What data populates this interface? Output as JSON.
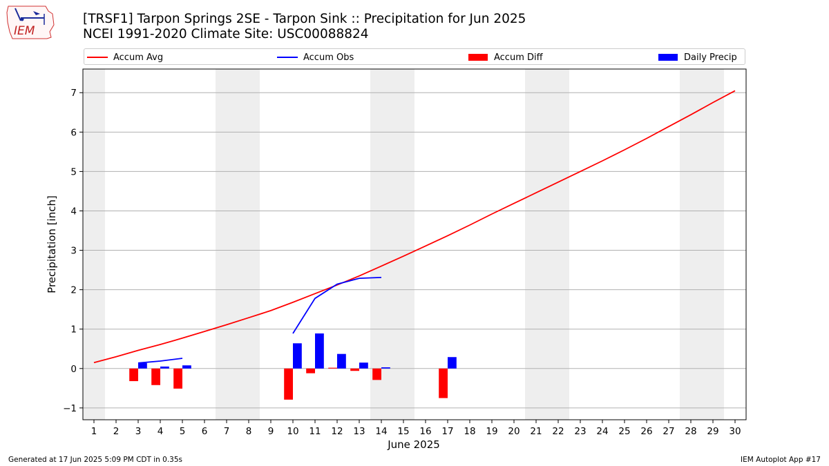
{
  "header": {
    "title_line1": "[TRSF1] Tarpon Springs 2SE - Tarpon Sink :: Precipitation for Jun 2025",
    "title_line2": "NCEI 1991-2020 Climate Site: USC00088824",
    "logo_text": "IEM"
  },
  "footer": {
    "generated": "Generated at 17 Jun 2025 5:09 PM CDT in 0.35s",
    "app": "IEM Autoplot App #17"
  },
  "chart_data": {
    "type": "bar",
    "xlabel": "June 2025",
    "ylabel": "Precipitation [inch]",
    "xlim": [
      0.5,
      30.5
    ],
    "ylim": [
      -1.3,
      7.6
    ],
    "yticks": [
      -1,
      0,
      1,
      2,
      3,
      4,
      5,
      6,
      7
    ],
    "xticks": [
      1,
      2,
      3,
      4,
      5,
      6,
      7,
      8,
      9,
      10,
      11,
      12,
      13,
      14,
      15,
      16,
      17,
      18,
      19,
      20,
      21,
      22,
      23,
      24,
      25,
      26,
      27,
      28,
      29,
      30
    ],
    "grid": "horizontal",
    "legend_placement": "top",
    "weekend_shading": [
      [
        0.5,
        1.5
      ],
      [
        6.5,
        8.5
      ],
      [
        13.5,
        15.5
      ],
      [
        20.5,
        22.5
      ],
      [
        27.5,
        29.5
      ]
    ],
    "colors": {
      "avg": "#ff0000",
      "obs": "#0000ff",
      "diff": "#ff0000",
      "daily": "#0000ff",
      "shade": "#eeeeee",
      "grid": "#b0b0b0"
    },
    "series": [
      {
        "name": "Accum Avg",
        "kind": "line",
        "x": [
          1,
          2,
          3,
          4,
          5,
          6,
          7,
          8,
          9,
          10,
          11,
          12,
          13,
          14,
          15,
          16,
          17,
          18,
          19,
          20,
          21,
          22,
          23,
          24,
          25,
          26,
          27,
          28,
          29,
          30
        ],
        "values": [
          0.15,
          0.3,
          0.46,
          0.61,
          0.77,
          0.94,
          1.11,
          1.29,
          1.47,
          1.68,
          1.9,
          2.12,
          2.35,
          2.6,
          2.85,
          3.11,
          3.37,
          3.64,
          3.92,
          4.19,
          4.46,
          4.73,
          5.0,
          5.27,
          5.55,
          5.84,
          6.14,
          6.44,
          6.75,
          7.05
        ]
      },
      {
        "name": "Accum Obs",
        "kind": "line",
        "x": [
          3,
          4,
          5
        ],
        "values": [
          0.14,
          0.19,
          0.26
        ]
      },
      {
        "name": "Accum Obs",
        "kind": "line",
        "x": [
          10,
          11,
          12,
          13,
          14
        ],
        "values": [
          0.89,
          1.78,
          2.14,
          2.29,
          2.31
        ]
      },
      {
        "name": "Accum Diff",
        "kind": "bar",
        "x": [
          3,
          4,
          5,
          10,
          11,
          12,
          13,
          14,
          17
        ],
        "values": [
          -0.32,
          -0.42,
          -0.51,
          -0.79,
          -0.12,
          0.02,
          -0.06,
          -0.29,
          -0.75
        ]
      },
      {
        "name": "Daily Precip",
        "kind": "bar",
        "x": [
          3,
          4,
          5,
          10,
          11,
          12,
          13,
          14,
          17
        ],
        "values": [
          0.14,
          0.05,
          0.08,
          0.64,
          0.89,
          0.37,
          0.15,
          0.03,
          0.29
        ]
      }
    ],
    "legend": [
      "Accum Avg",
      "Accum Obs",
      "Accum Diff",
      "Daily Precip"
    ]
  }
}
